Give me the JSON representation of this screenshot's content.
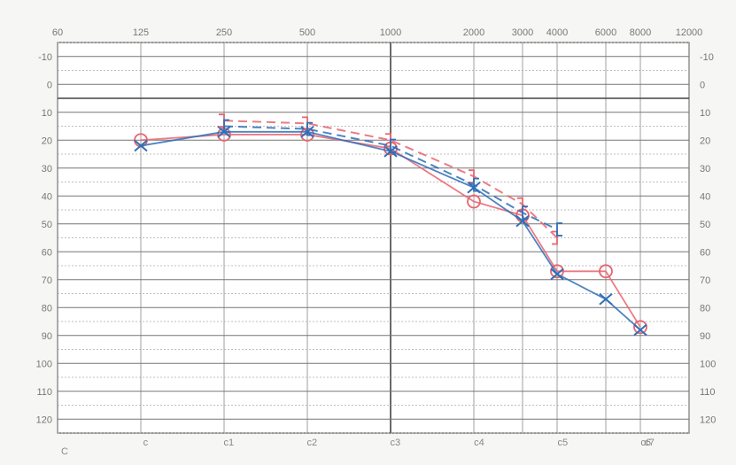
{
  "chart_data": {
    "type": "line",
    "title": "",
    "xlabel": "",
    "ylabel": "",
    "x_scale": "log",
    "y_inverted": true,
    "ylim": [
      -15,
      125
    ],
    "grid": true,
    "x_tick_labels": [
      "60",
      "125",
      "250",
      "500",
      "1000",
      "2000",
      "3000",
      "4000",
      "6000",
      "8000",
      "12000"
    ],
    "x_tick_freqs": [
      62.5,
      125,
      250,
      500,
      1000,
      2000,
      3000,
      4000,
      6000,
      8000,
      12000
    ],
    "y_ticks": [
      -10,
      0,
      10,
      20,
      30,
      40,
      50,
      60,
      70,
      80,
      90,
      100,
      110,
      120
    ],
    "y_tick_labels": [
      "-10",
      "0",
      "10",
      "20",
      "30",
      "40",
      "50",
      "60",
      "70",
      "80",
      "90",
      "100",
      "110",
      "120"
    ],
    "note_labels": [
      "C",
      "c",
      "c1",
      "c2",
      "c3",
      "c4",
      "c5",
      "c6",
      "c7"
    ],
    "note_freqs": [
      65,
      130,
      260,
      520,
      1040,
      2090,
      4190,
      8370,
      16740
    ],
    "series": [
      {
        "color": "#e8646e",
        "marker": "circle",
        "dash": false,
        "x": [
          125,
          250,
          500,
          1000,
          2000,
          3000,
          4000,
          6000,
          8000
        ],
        "values": [
          20,
          18,
          18,
          23,
          42,
          47,
          67,
          67,
          87
        ]
      },
      {
        "color": "#2f6fb7",
        "marker": "x",
        "dash": false,
        "x": [
          125,
          250,
          500,
          1000,
          2000,
          3000,
          4000,
          6000,
          8000
        ],
        "values": [
          22,
          17,
          17,
          24,
          37,
          49,
          68,
          77,
          88
        ]
      },
      {
        "color": "#e8646e",
        "marker": "bracket",
        "dash": true,
        "x": [
          250,
          500,
          1000,
          2000,
          3000,
          4000
        ],
        "values": [
          13,
          14,
          20,
          33,
          43,
          55
        ]
      },
      {
        "color": "#2f6fb7",
        "marker": "bracket",
        "dash": true,
        "x": [
          250,
          500,
          1000,
          2000,
          3000,
          4000
        ],
        "values": [
          15,
          16,
          22,
          36,
          46,
          52
        ]
      }
    ]
  }
}
